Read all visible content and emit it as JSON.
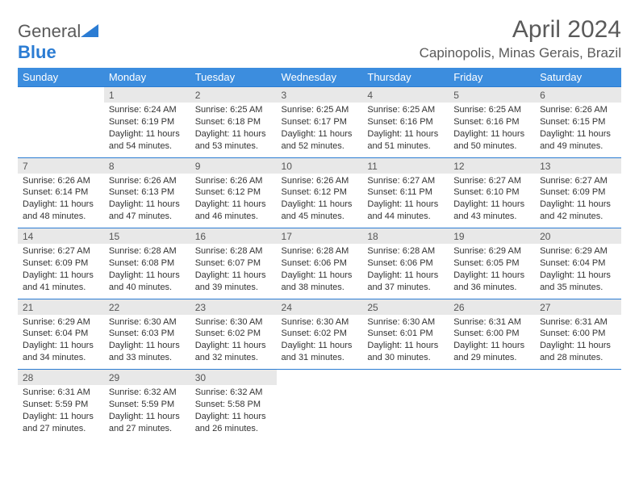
{
  "logo": {
    "text1": "General",
    "text2": "Blue"
  },
  "title": "April 2024",
  "location": "Capinopolis, Minas Gerais, Brazil",
  "colors": {
    "header_bg": "#3c8dde",
    "header_text": "#ffffff",
    "daynum_bg": "#e8e8e8",
    "row_border": "#2b7cd3",
    "body_text": "#333333",
    "title_text": "#5a5a5a",
    "logo_blue": "#2b7cd3"
  },
  "day_headers": [
    "Sunday",
    "Monday",
    "Tuesday",
    "Wednesday",
    "Thursday",
    "Friday",
    "Saturday"
  ],
  "weeks": [
    [
      null,
      {
        "n": "1",
        "sr": "6:24 AM",
        "ss": "6:19 PM",
        "dl": "11 hours and 54 minutes."
      },
      {
        "n": "2",
        "sr": "6:25 AM",
        "ss": "6:18 PM",
        "dl": "11 hours and 53 minutes."
      },
      {
        "n": "3",
        "sr": "6:25 AM",
        "ss": "6:17 PM",
        "dl": "11 hours and 52 minutes."
      },
      {
        "n": "4",
        "sr": "6:25 AM",
        "ss": "6:16 PM",
        "dl": "11 hours and 51 minutes."
      },
      {
        "n": "5",
        "sr": "6:25 AM",
        "ss": "6:16 PM",
        "dl": "11 hours and 50 minutes."
      },
      {
        "n": "6",
        "sr": "6:26 AM",
        "ss": "6:15 PM",
        "dl": "11 hours and 49 minutes."
      }
    ],
    [
      {
        "n": "7",
        "sr": "6:26 AM",
        "ss": "6:14 PM",
        "dl": "11 hours and 48 minutes."
      },
      {
        "n": "8",
        "sr": "6:26 AM",
        "ss": "6:13 PM",
        "dl": "11 hours and 47 minutes."
      },
      {
        "n": "9",
        "sr": "6:26 AM",
        "ss": "6:12 PM",
        "dl": "11 hours and 46 minutes."
      },
      {
        "n": "10",
        "sr": "6:26 AM",
        "ss": "6:12 PM",
        "dl": "11 hours and 45 minutes."
      },
      {
        "n": "11",
        "sr": "6:27 AM",
        "ss": "6:11 PM",
        "dl": "11 hours and 44 minutes."
      },
      {
        "n": "12",
        "sr": "6:27 AM",
        "ss": "6:10 PM",
        "dl": "11 hours and 43 minutes."
      },
      {
        "n": "13",
        "sr": "6:27 AM",
        "ss": "6:09 PM",
        "dl": "11 hours and 42 minutes."
      }
    ],
    [
      {
        "n": "14",
        "sr": "6:27 AM",
        "ss": "6:09 PM",
        "dl": "11 hours and 41 minutes."
      },
      {
        "n": "15",
        "sr": "6:28 AM",
        "ss": "6:08 PM",
        "dl": "11 hours and 40 minutes."
      },
      {
        "n": "16",
        "sr": "6:28 AM",
        "ss": "6:07 PM",
        "dl": "11 hours and 39 minutes."
      },
      {
        "n": "17",
        "sr": "6:28 AM",
        "ss": "6:06 PM",
        "dl": "11 hours and 38 minutes."
      },
      {
        "n": "18",
        "sr": "6:28 AM",
        "ss": "6:06 PM",
        "dl": "11 hours and 37 minutes."
      },
      {
        "n": "19",
        "sr": "6:29 AM",
        "ss": "6:05 PM",
        "dl": "11 hours and 36 minutes."
      },
      {
        "n": "20",
        "sr": "6:29 AM",
        "ss": "6:04 PM",
        "dl": "11 hours and 35 minutes."
      }
    ],
    [
      {
        "n": "21",
        "sr": "6:29 AM",
        "ss": "6:04 PM",
        "dl": "11 hours and 34 minutes."
      },
      {
        "n": "22",
        "sr": "6:30 AM",
        "ss": "6:03 PM",
        "dl": "11 hours and 33 minutes."
      },
      {
        "n": "23",
        "sr": "6:30 AM",
        "ss": "6:02 PM",
        "dl": "11 hours and 32 minutes."
      },
      {
        "n": "24",
        "sr": "6:30 AM",
        "ss": "6:02 PM",
        "dl": "11 hours and 31 minutes."
      },
      {
        "n": "25",
        "sr": "6:30 AM",
        "ss": "6:01 PM",
        "dl": "11 hours and 30 minutes."
      },
      {
        "n": "26",
        "sr": "6:31 AM",
        "ss": "6:00 PM",
        "dl": "11 hours and 29 minutes."
      },
      {
        "n": "27",
        "sr": "6:31 AM",
        "ss": "6:00 PM",
        "dl": "11 hours and 28 minutes."
      }
    ],
    [
      {
        "n": "28",
        "sr": "6:31 AM",
        "ss": "5:59 PM",
        "dl": "11 hours and 27 minutes."
      },
      {
        "n": "29",
        "sr": "6:32 AM",
        "ss": "5:59 PM",
        "dl": "11 hours and 27 minutes."
      },
      {
        "n": "30",
        "sr": "6:32 AM",
        "ss": "5:58 PM",
        "dl": "11 hours and 26 minutes."
      },
      null,
      null,
      null,
      null
    ]
  ],
  "labels": {
    "sunrise": "Sunrise:",
    "sunset": "Sunset:",
    "daylight": "Daylight:"
  }
}
